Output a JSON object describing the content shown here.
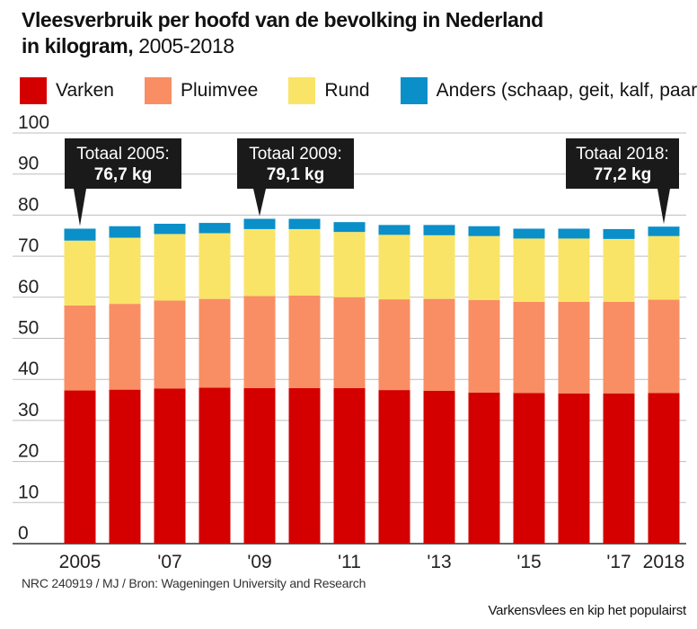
{
  "header": {
    "title_bold_line1": "Vleesverbruik per hoofd van de bevolking in Nederland",
    "title_bold_line2": "in kilogram,",
    "title_light": " 2005-2018"
  },
  "legend": [
    {
      "label": "Varken",
      "color": "#d40000"
    },
    {
      "label": "Pluimvee",
      "color": "#f98e64"
    },
    {
      "label": "Rund",
      "color": "#fae467"
    },
    {
      "label": "Anders (schaap, geit, kalf, paard)",
      "color": "#0a8fc9"
    }
  ],
  "chart_data": {
    "type": "bar",
    "stacked": true,
    "categories": [
      "2005",
      "2006",
      "2007",
      "2008",
      "2009",
      "2010",
      "2011",
      "2012",
      "2013",
      "2014",
      "2015",
      "2016",
      "2017",
      "2018"
    ],
    "x_tick_labels": [
      "2005",
      "",
      "'07",
      "",
      "'09",
      "",
      "'11",
      "",
      "'13",
      "",
      "'15",
      "",
      "'17",
      "2018"
    ],
    "series": [
      {
        "name": "Varken",
        "color": "#d40000",
        "values": [
          37.3,
          37.5,
          37.8,
          38.0,
          37.9,
          37.9,
          37.9,
          37.4,
          37.2,
          36.8,
          36.7,
          36.6,
          36.6,
          36.7
        ]
      },
      {
        "name": "Pluimvee",
        "color": "#f98e64",
        "values": [
          20.7,
          20.9,
          21.4,
          21.6,
          22.4,
          22.5,
          22.1,
          22.1,
          22.4,
          22.5,
          22.2,
          22.3,
          22.3,
          22.7
        ]
      },
      {
        "name": "Rund",
        "color": "#fae467",
        "values": [
          15.8,
          16.1,
          16.2,
          16.0,
          16.3,
          16.2,
          15.9,
          15.7,
          15.5,
          15.6,
          15.4,
          15.4,
          15.3,
          15.5
        ]
      },
      {
        "name": "Anders (schaap, geit, kalf, paard)",
        "color": "#0a8fc9",
        "values": [
          2.9,
          2.8,
          2.5,
          2.5,
          2.5,
          2.5,
          2.4,
          2.4,
          2.5,
          2.4,
          2.4,
          2.4,
          2.4,
          2.3
        ]
      }
    ],
    "ylim": [
      0,
      100
    ],
    "y_ticks": [
      0,
      10,
      20,
      30,
      40,
      50,
      60,
      70,
      80,
      90,
      100
    ],
    "grid": true,
    "annotations": [
      {
        "category": "2005",
        "line1": "Totaal 2005:",
        "line2": "76,7 kg"
      },
      {
        "category": "2009",
        "line1": "Totaal 2009:",
        "line2": "79,1 kg"
      },
      {
        "category": "2018",
        "line1": "Totaal 2018:",
        "line2": "77,2 kg"
      }
    ]
  },
  "footer": {
    "source": "NRC 240919 / MJ / Bron: Wageningen University and Research",
    "caption": "Varkensvlees en kip het populairst"
  }
}
